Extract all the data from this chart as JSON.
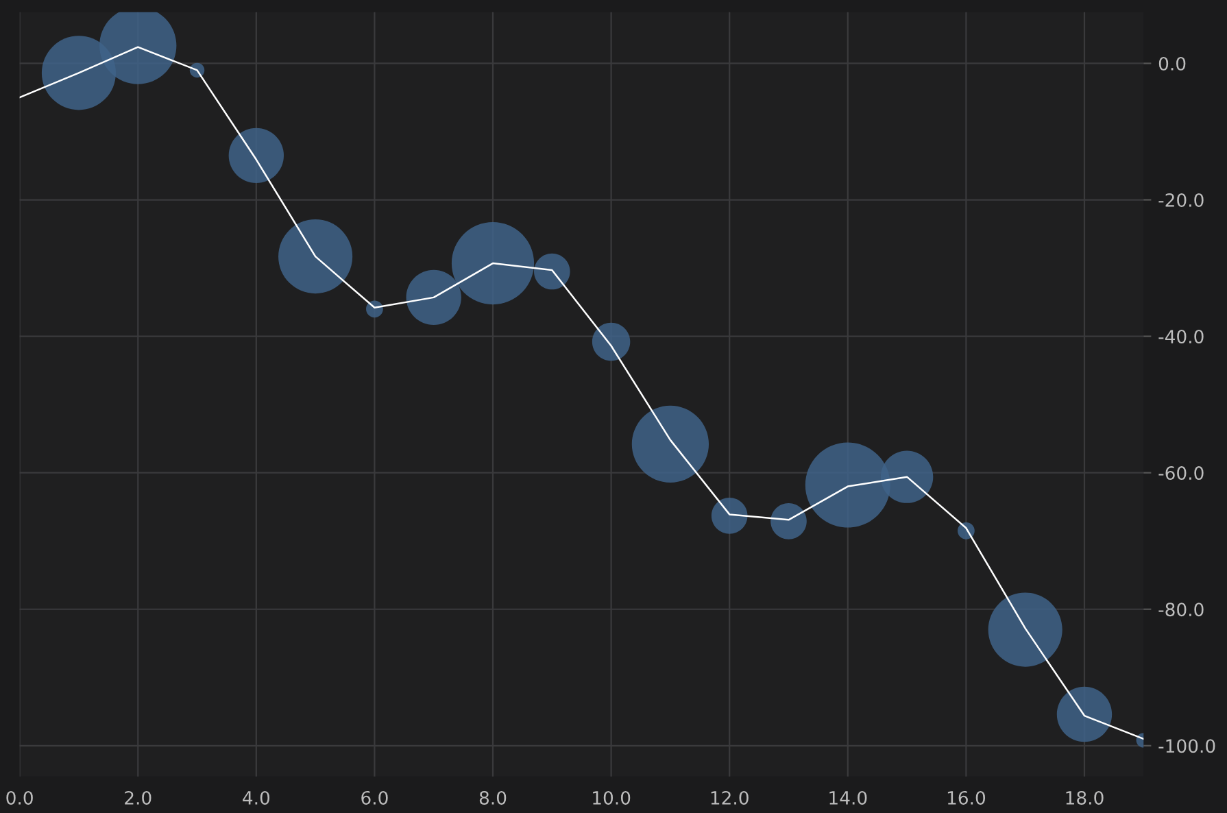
{
  "chart_data": {
    "type": "bubble",
    "xlim": [
      0,
      19
    ],
    "ylim": [
      -104.5,
      7.5
    ],
    "xticks": [
      {
        "value": 0,
        "label": "0.0"
      },
      {
        "value": 2,
        "label": "2.0"
      },
      {
        "value": 4,
        "label": "4.0"
      },
      {
        "value": 6,
        "label": "6.0"
      },
      {
        "value": 8,
        "label": "8.0"
      },
      {
        "value": 10,
        "label": "10.0"
      },
      {
        "value": 12,
        "label": "12.0"
      },
      {
        "value": 14,
        "label": "14.0"
      },
      {
        "value": 16,
        "label": "16.0"
      },
      {
        "value": 18,
        "label": "18.0"
      }
    ],
    "yticks": [
      {
        "value": 0,
        "label": "0.0"
      },
      {
        "value": -20,
        "label": "-20.0"
      },
      {
        "value": -40,
        "label": "-40.0"
      },
      {
        "value": -60,
        "label": "-60.0"
      },
      {
        "value": -80,
        "label": "-80.0"
      },
      {
        "value": -100,
        "label": "-100.0"
      }
    ],
    "grid": true,
    "legend": false,
    "series": [
      {
        "color": "#3f6388",
        "x": [
          1,
          2,
          3,
          4,
          5,
          6,
          7,
          8,
          9,
          10,
          11,
          12,
          13,
          14,
          15,
          16,
          17,
          18,
          19
        ],
        "values": [
          -1.4,
          2.6,
          -1.0,
          -13.5,
          -28.3,
          -36.0,
          -34.3,
          -29.3,
          -30.5,
          -40.8,
          -55.8,
          -66.3,
          -67.1,
          -61.8,
          -60.6,
          -68.5,
          -83.0,
          -95.4,
          -99.2
        ],
        "sizes": [
          0.76,
          0.82,
          0.03,
          0.42,
          0.76,
          0.04,
          0.42,
          0.94,
          0.18,
          0.2,
          0.82,
          0.18,
          0.18,
          1,
          0.38,
          0.04,
          0.76,
          0.42,
          0.03
        ]
      },
      {
        "type": "line",
        "color": "#ffffff",
        "x": [
          0,
          1,
          2,
          3,
          4,
          5,
          6,
          7,
          8,
          9,
          10,
          11,
          12,
          13,
          14,
          15,
          16,
          17,
          18,
          19
        ],
        "values": [
          -5.0,
          -1.4,
          2.4,
          -1.0,
          -14.1,
          -28.3,
          -35.8,
          -34.3,
          -29.3,
          -30.3,
          -41.4,
          -55.2,
          -66.1,
          -66.9,
          -62.0,
          -60.6,
          -68.1,
          -82.8,
          -95.6,
          -99.0
        ]
      }
    ]
  }
}
